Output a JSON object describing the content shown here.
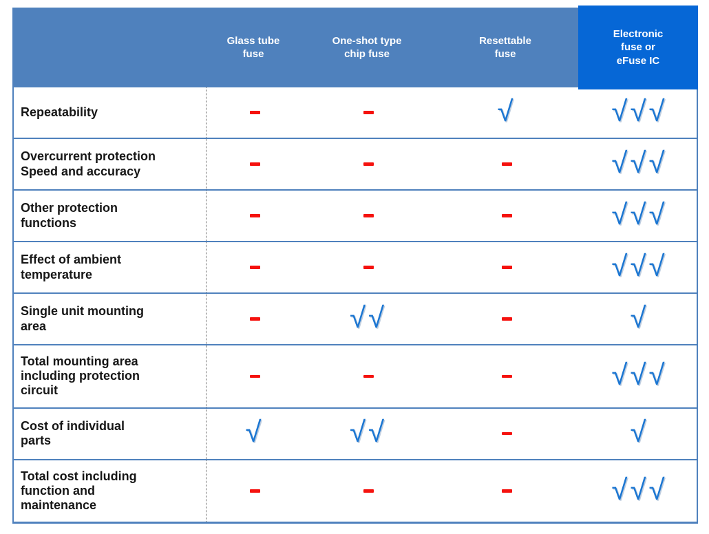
{
  "table": {
    "style": {
      "header_background": "#4f81bd",
      "highlight_background": "#0667d6",
      "header_text_color": "#ffffff",
      "border_color": "#4f81bd",
      "dash_color": "#f5120e",
      "check_color": "#1b76d2"
    },
    "header": {
      "row_label_column": "",
      "columns": [
        {
          "label": "Glass tube\nfuse",
          "highlight": false
        },
        {
          "label": "One-shot type\nchip fuse",
          "highlight": false
        },
        {
          "label": "Resettable\nfuse",
          "highlight": false
        },
        {
          "label": "Electronic\nfuse or\neFuse IC",
          "highlight": true
        }
      ]
    },
    "rows": [
      {
        "label": "Repeatability",
        "cells": [
          "-",
          "-",
          "✓",
          "✓✓✓"
        ]
      },
      {
        "label": "Overcurrent protection\nSpeed and accuracy",
        "cells": [
          "-",
          "-",
          "-",
          "✓✓✓"
        ]
      },
      {
        "label": "Other protection\nfunctions",
        "cells": [
          "-",
          "-",
          "-",
          "✓✓✓"
        ]
      },
      {
        "label": "Effect of ambient\ntemperature",
        "cells": [
          "-",
          "-",
          "-",
          "✓✓✓"
        ]
      },
      {
        "label": "Single unit mounting\narea",
        "cells": [
          "-",
          "✓✓",
          "-",
          "✓"
        ]
      },
      {
        "label": "Total mounting area\nincluding protection\ncircuit",
        "cells": [
          "-",
          "-",
          "-",
          "✓✓✓"
        ]
      },
      {
        "label": "Cost of individual\nparts",
        "cells": [
          "✓",
          "✓✓",
          "-",
          "✓"
        ]
      },
      {
        "label": "Total cost including\nfunction and\nmaintenance",
        "cells": [
          "-",
          "-",
          "-",
          "✓✓✓"
        ]
      }
    ]
  },
  "chart_data": {
    "type": "table",
    "columns": [
      "Glass tube fuse",
      "One-shot type chip fuse",
      "Resettable fuse",
      "Electronic fuse or eFuse IC"
    ],
    "highlighted_column": "Electronic fuse or eFuse IC",
    "rows": [
      {
        "criterion": "Repeatability",
        "values": [
          "-",
          "-",
          "✓",
          "✓✓✓"
        ]
      },
      {
        "criterion": "Overcurrent protection Speed and accuracy",
        "values": [
          "-",
          "-",
          "-",
          "✓✓✓"
        ]
      },
      {
        "criterion": "Other protection functions",
        "values": [
          "-",
          "-",
          "-",
          "✓✓✓"
        ]
      },
      {
        "criterion": "Effect of ambient temperature",
        "values": [
          "-",
          "-",
          "-",
          "✓✓✓"
        ]
      },
      {
        "criterion": "Single unit mounting area",
        "values": [
          "-",
          "✓✓",
          "-",
          "✓"
        ]
      },
      {
        "criterion": "Total mounting area including protection circuit",
        "values": [
          "-",
          "-",
          "-",
          "✓✓✓"
        ]
      },
      {
        "criterion": "Cost of individual parts",
        "values": [
          "✓",
          "✓✓",
          "-",
          "✓"
        ]
      },
      {
        "criterion": "Total cost including function and maintenance",
        "values": [
          "-",
          "-",
          "-",
          "✓✓✓"
        ]
      }
    ]
  }
}
